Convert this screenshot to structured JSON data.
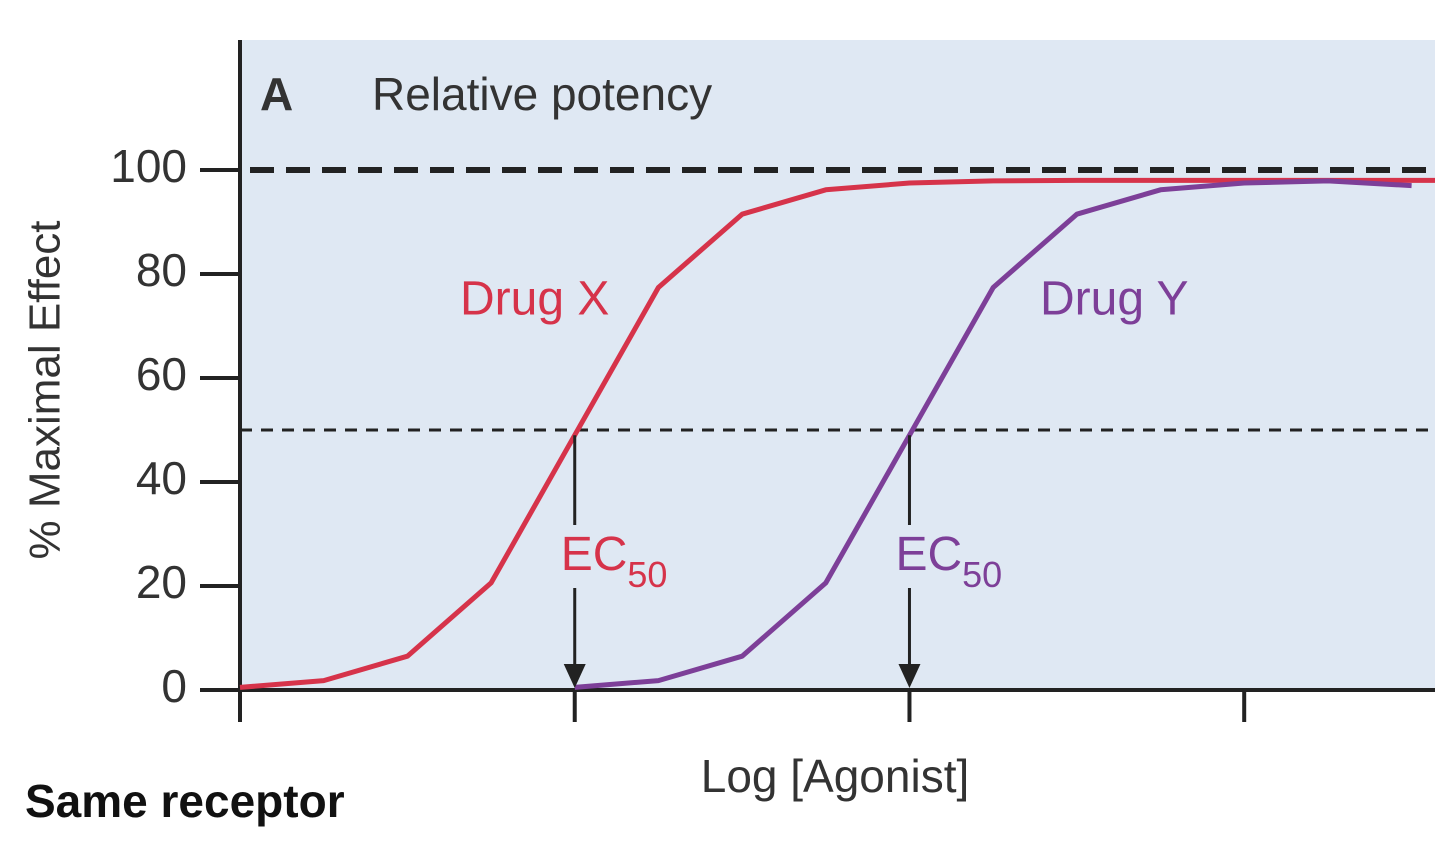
{
  "chart_data": {
    "type": "line",
    "panel_letter": "A",
    "title": "Relative potency",
    "ylabel": "% Maximal Effect",
    "xlabel": "Log [Agonist]",
    "caption": "Same receptor",
    "x": [
      0,
      0.25,
      0.5,
      0.75,
      1,
      1.25,
      1.5,
      1.75,
      2,
      2.25,
      2.5,
      2.75,
      3,
      3.25,
      3.5,
      3.57
    ],
    "series": [
      {
        "name": "Drug X",
        "color": "#d6334a",
        "values": [
          0.5,
          1.8,
          6.5,
          20.6,
          49,
          77.4,
          91.5,
          96.2,
          97.5,
          97.9,
          98,
          98,
          98,
          98,
          98,
          98
        ]
      },
      {
        "name": "Drug Y",
        "color": "#7d3f98",
        "values": [
          null,
          null,
          null,
          null,
          0.5,
          1.8,
          6.5,
          20.6,
          49,
          77.4,
          91.5,
          96.2,
          97.5,
          97.9,
          97,
          null
        ]
      }
    ],
    "ec50": [
      {
        "x": 1,
        "y": 49,
        "label": "EC",
        "subscript": "50",
        "color": "#d6334a"
      },
      {
        "x": 2,
        "y": 49,
        "label": "EC",
        "subscript": "50",
        "color": "#7d3f98"
      }
    ],
    "reference_lines": [
      100,
      50
    ],
    "xlim": [
      0,
      3.57
    ],
    "xticks": [
      0,
      1,
      2,
      3
    ],
    "ylim": [
      0,
      125
    ],
    "yticks": [
      0,
      20,
      40,
      60,
      80,
      100
    ],
    "background": "#dfe8f3"
  }
}
